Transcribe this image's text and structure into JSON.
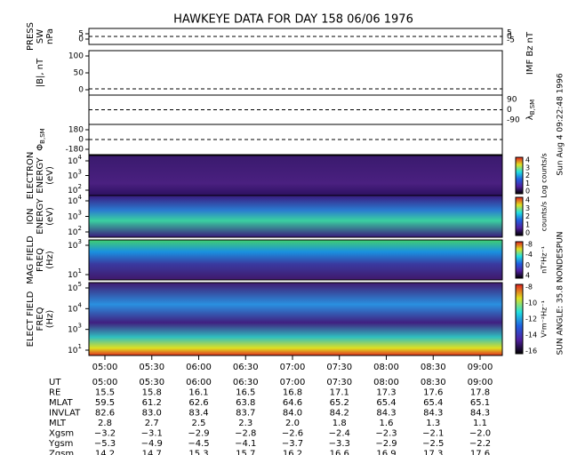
{
  "title": "HAWKEYE DATA FOR DAY 158 06/06 1976",
  "timestamp": "Sun Aug  4 09:22:48 1996",
  "sun_angle": "SUN ANGLE: 35.8 NONDESPUN",
  "panels": [
    {
      "label": [
        "PRESS",
        "SW",
        "nPa"
      ],
      "left_ticks": [
        "5",
        "0"
      ],
      "right_label": [
        "IMF Bz nT"
      ],
      "right_ticks": [
        "5",
        "0",
        "-5"
      ]
    },
    {
      "label": [
        "|B|, nT"
      ],
      "left_ticks": [
        "100",
        "50",
        "0"
      ]
    },
    {
      "right_label": [
        "λ"
      ],
      "right_sub": "B,SM",
      "right_ticks": [
        "90",
        "0",
        "-90"
      ]
    },
    {
      "label": [
        "Φ"
      ],
      "label_sub": "B,SM",
      "left_ticks": [
        "180",
        "0",
        "-180"
      ]
    },
    {
      "label": [
        "ELECTRON",
        "ENERGY",
        "(eV)"
      ],
      "left_ticks": [
        {
          "base": "10",
          "exp": "4"
        },
        {
          "base": "10",
          "exp": "3"
        },
        {
          "base": "10",
          "exp": "2"
        }
      ],
      "colorbar_ticks": [
        "4",
        "3",
        "2",
        "1",
        "0"
      ],
      "colorbar_label": "Log counts/s"
    },
    {
      "label": [
        "ION",
        "ENERGY",
        "(eV)"
      ],
      "left_ticks": [
        {
          "base": "10",
          "exp": "4"
        },
        {
          "base": "10",
          "exp": "3"
        },
        {
          "base": "10",
          "exp": "2"
        }
      ],
      "colorbar_ticks": [
        "4",
        "3",
        "2",
        "1",
        "0"
      ],
      "colorbar_label": "counts/s"
    },
    {
      "label": [
        "MAG FIELD",
        "FREQ",
        "(Hz)"
      ],
      "left_ticks": [
        {
          "base": "10",
          "exp": "3"
        },
        {
          "base": "10",
          "exp": "1"
        }
      ],
      "colorbar_ticks": [
        "-8",
        "-4",
        "0",
        "4"
      ],
      "colorbar_label": "nT²Hz⁻¹"
    },
    {
      "label": [
        "ELECT FIELD",
        "FREQ",
        "(Hz)"
      ],
      "left_ticks": [
        {
          "base": "10",
          "exp": "5"
        },
        {
          "base": "10",
          "exp": "4"
        },
        {
          "base": "10",
          "exp": "3"
        },
        {
          "base": "10",
          "exp": "1"
        }
      ],
      "colorbar_ticks": [
        "-8",
        "-10",
        "-12",
        "-14",
        "-16"
      ],
      "colorbar_label": "V²m⁻²Hz⁻¹"
    }
  ],
  "ephemeris": {
    "row_labels": [
      "UT",
      "RE",
      "MLAT",
      "INVLAT",
      "MLT",
      "Xgsm",
      "Ygsm",
      "Zgsm"
    ],
    "rows": [
      [
        "05:00",
        "05:30",
        "06:00",
        "06:30",
        "07:00",
        "07:30",
        "08:00",
        "08:30",
        "09:00"
      ],
      [
        "15.5",
        "15.8",
        "16.1",
        "16.5",
        "16.8",
        "17.1",
        "17.3",
        "17.6",
        "17.8"
      ],
      [
        "59.5",
        "61.2",
        "62.6",
        "63.8",
        "64.6",
        "65.2",
        "65.4",
        "65.4",
        "65.1"
      ],
      [
        "82.6",
        "83.0",
        "83.4",
        "83.7",
        "84.0",
        "84.2",
        "84.3",
        "84.3",
        "84.3"
      ],
      [
        "2.8",
        "2.7",
        "2.5",
        "2.3",
        "2.0",
        "1.8",
        "1.6",
        "1.3",
        "1.1"
      ],
      [
        "−3.2",
        "−3.1",
        "−2.9",
        "−2.8",
        "−2.6",
        "−2.4",
        "−2.3",
        "−2.1",
        "−2.0"
      ],
      [
        "−5.3",
        "−4.9",
        "−4.5",
        "−4.1",
        "−3.7",
        "−3.3",
        "−2.9",
        "−2.5",
        "−2.2"
      ],
      [
        "14.2",
        "14.7",
        "15.3",
        "15.7",
        "16.2",
        "16.6",
        "16.9",
        "17.3",
        "17.6"
      ]
    ]
  }
}
